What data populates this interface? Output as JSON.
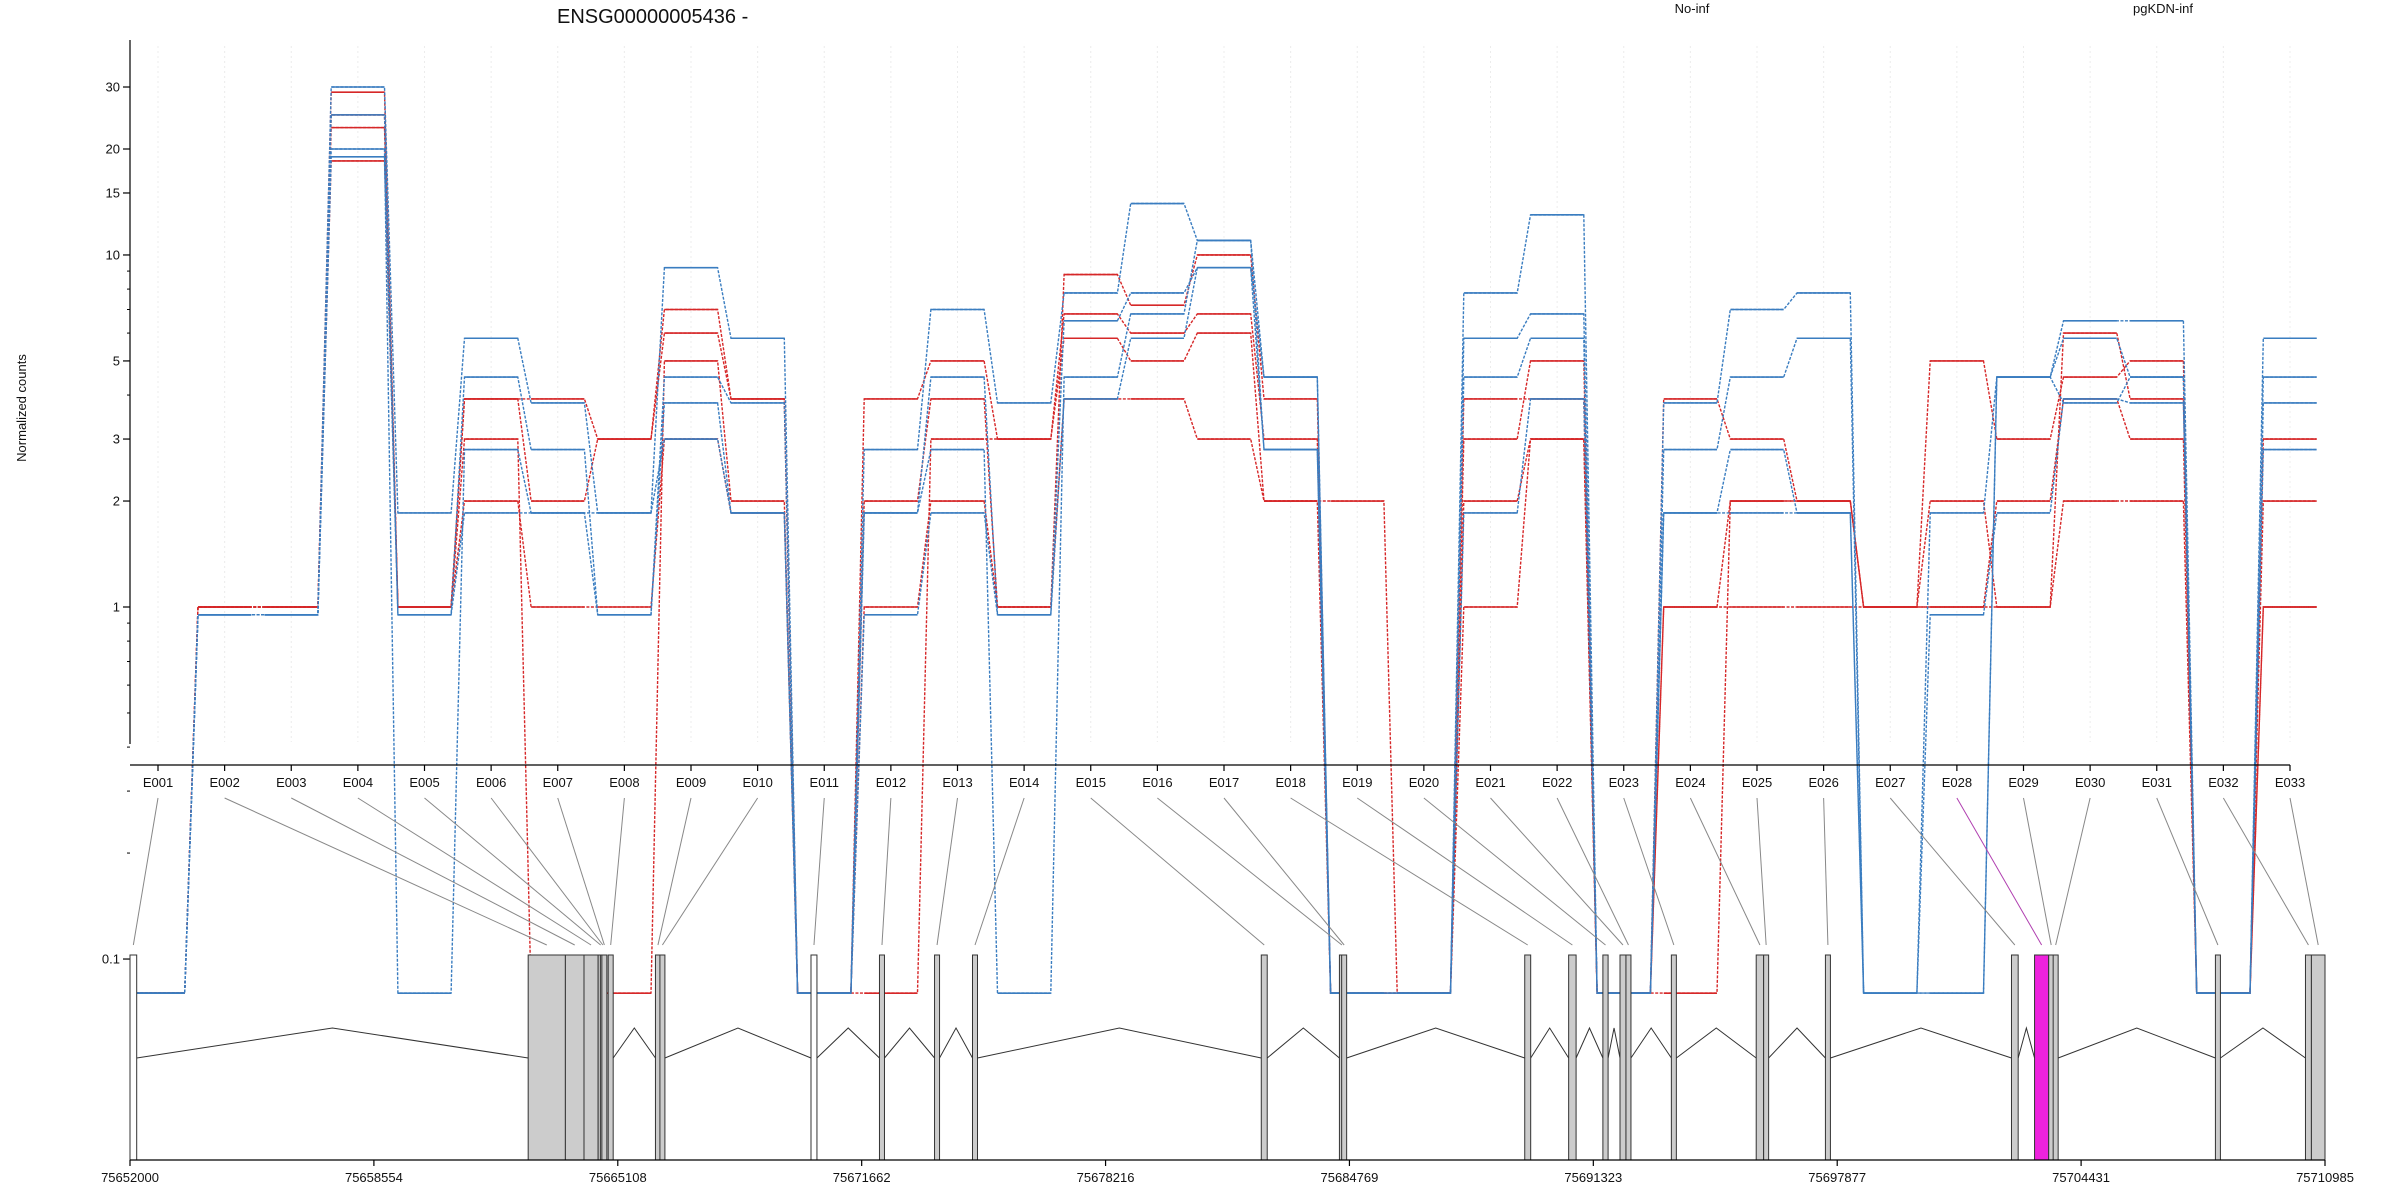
{
  "chart_data": {
    "type": "line",
    "title": "ENSG00000005436 -",
    "ylabel": "Normalized counts",
    "xlabel": "",
    "y_scale": "log",
    "ylim": [
      0.08,
      36
    ],
    "y_ticks": [
      0.1,
      1,
      2,
      3,
      5,
      10,
      15,
      20,
      30
    ],
    "y_tick_labels": [
      "0.1",
      "1",
      "2",
      "3",
      "5",
      "10",
      "15",
      "20",
      "30"
    ],
    "grid": true,
    "legend_position": "top-right",
    "legend": [
      {
        "label": "No-inf",
        "color": "#d62728"
      },
      {
        "label": "pgKDN-inf",
        "color": "#3a7dc0"
      }
    ],
    "categories": [
      "E001",
      "E002",
      "E003",
      "E004",
      "E005",
      "E006",
      "E007",
      "E008",
      "E009",
      "E010",
      "E011",
      "E012",
      "E013",
      "E014",
      "E015",
      "E016",
      "E017",
      "E018",
      "E019",
      "E020",
      "E021",
      "E022",
      "E023",
      "E024",
      "E025",
      "E026",
      "E027",
      "E028",
      "E029",
      "E030",
      "E031",
      "E032",
      "E033"
    ],
    "series": [
      {
        "group": "No-inf",
        "color": "#d62728",
        "values": [
          0.08,
          1,
          1,
          18.5,
          1,
          2,
          1,
          1,
          3,
          1.85,
          0.08,
          1,
          2,
          1,
          3.9,
          3.9,
          3,
          2,
          2,
          0.08,
          1,
          3,
          0.08,
          1,
          1,
          1,
          1,
          1,
          1,
          2,
          2,
          0.08,
          1
        ]
      },
      {
        "group": "No-inf",
        "color": "#d62728",
        "values": [
          0.08,
          1,
          1,
          23,
          1,
          3,
          0.08,
          0.08,
          5,
          2,
          0.08,
          0.08,
          3,
          3,
          5.8,
          5,
          6,
          2,
          0.08,
          0.08,
          2,
          3,
          0.08,
          0.08,
          2,
          2,
          1,
          1,
          2,
          3.9,
          3,
          0.08,
          2
        ]
      },
      {
        "group": "No-inf",
        "color": "#d62728",
        "values": [
          0.08,
          1,
          1,
          25,
          1,
          3.9,
          3.9,
          3,
          6,
          3.9,
          0.08,
          3.9,
          5,
          3,
          6.8,
          6,
          6.8,
          3,
          0.08,
          0.08,
          3,
          5,
          0.08,
          3.9,
          3,
          2,
          1,
          5,
          3,
          4.5,
          5,
          0.08,
          3
        ]
      },
      {
        "group": "No-inf",
        "color": "#d62728",
        "values": [
          0.08,
          1,
          1,
          29,
          1,
          3.9,
          2,
          3,
          7,
          3.9,
          0.08,
          2,
          3.9,
          1,
          8.8,
          7.2,
          10,
          3.9,
          0.08,
          0.08,
          3.9,
          3.9,
          0.08,
          1,
          2,
          2,
          1,
          2,
          1,
          6,
          3.9,
          0.08,
          1
        ]
      },
      {
        "group": "pgKDN-inf",
        "color": "#3a7dc0",
        "values": [
          0.08,
          0.95,
          0.95,
          19,
          0.95,
          1.85,
          1.85,
          1.85,
          3,
          1.85,
          0.08,
          0.95,
          1.85,
          0.95,
          3.9,
          5.8,
          9.2,
          2.8,
          0.08,
          0.08,
          1.85,
          3.9,
          0.08,
          1.85,
          1.85,
          1.85,
          0.08,
          0.95,
          1.85,
          3.9,
          3.8,
          0.08,
          2.8
        ]
      },
      {
        "group": "pgKDN-inf",
        "color": "#3a7dc0",
        "values": [
          0.08,
          0.95,
          0.95,
          20,
          0.08,
          2.8,
          1.85,
          0.95,
          3.8,
          1.85,
          0.08,
          1.85,
          2.8,
          0.08,
          4.5,
          6.8,
          11,
          2.8,
          0.08,
          0.08,
          4.5,
          5.8,
          0.08,
          1.85,
          2.8,
          1.85,
          0.08,
          0.08,
          4.5,
          3.8,
          4.5,
          0.08,
          3.8
        ]
      },
      {
        "group": "pgKDN-inf",
        "color": "#3a7dc0",
        "values": [
          0.08,
          0.95,
          0.95,
          25,
          0.95,
          4.5,
          2.8,
          0.95,
          4.5,
          3.8,
          0.08,
          1.85,
          4.5,
          0.95,
          6.5,
          7.8,
          9.2,
          4.5,
          0.08,
          0.08,
          5.8,
          6.8,
          0.08,
          2.8,
          4.5,
          5.8,
          0.08,
          0.08,
          4.5,
          5.8,
          4.5,
          0.08,
          4.5
        ]
      },
      {
        "group": "pgKDN-inf",
        "color": "#3a7dc0",
        "values": [
          0.08,
          0.95,
          0.95,
          30,
          1.85,
          5.8,
          3.8,
          1.85,
          9.2,
          5.8,
          0.08,
          2.8,
          7,
          3.8,
          7.8,
          14,
          11,
          4.5,
          0.08,
          0.08,
          7.8,
          13,
          0.08,
          3.8,
          7,
          7.8,
          0.08,
          1.85,
          4.5,
          6.5,
          6.5,
          0.08,
          5.8
        ]
      }
    ],
    "gene_model": {
      "coordinate_ticks": [
        75652000,
        75658554,
        75665108,
        75671662,
        75678216,
        75684769,
        75691323,
        75697877,
        75704431,
        75710985
      ],
      "coordinate_tick_labels": [
        "75652000",
        "75658554",
        "75665108",
        "75671662",
        "75678216",
        "75684769",
        "75691323",
        "75697877",
        "75704431",
        "75710985"
      ],
      "range": [
        75652000,
        75710985
      ],
      "highlighted_exon": "E028",
      "highlight_color": "#ee22dd",
      "exons": [
        {
          "id": "E001",
          "start": 75652000,
          "end": 75652180,
          "shaded": false
        },
        {
          "id": "E002",
          "start": 75662700,
          "end": 75663700,
          "shaded": true
        },
        {
          "id": "E003",
          "start": 75663700,
          "end": 75664200,
          "shaded": true
        },
        {
          "id": "E004",
          "start": 75664200,
          "end": 75664580,
          "shaded": true
        },
        {
          "id": "E005",
          "start": 75664580,
          "end": 75664640,
          "shaded": true
        },
        {
          "id": "E006",
          "start": 75664640,
          "end": 75664680,
          "shaded": true
        },
        {
          "id": "E007",
          "start": 75664680,
          "end": 75664800,
          "shaded": true
        },
        {
          "id": "E008",
          "start": 75664850,
          "end": 75664980,
          "shaded": true
        },
        {
          "id": "E009",
          "start": 75666120,
          "end": 75666240,
          "shaded": true
        },
        {
          "id": "E010",
          "start": 75666240,
          "end": 75666300,
          "shaded": true
        },
        {
          "id": "E011",
          "start": 75670300,
          "end": 75670460,
          "shaded": false
        },
        {
          "id": "E012",
          "start": 75672140,
          "end": 75672240,
          "shaded": true
        },
        {
          "id": "E013",
          "start": 75673620,
          "end": 75673720,
          "shaded": true
        },
        {
          "id": "E014",
          "start": 75674640,
          "end": 75674740,
          "shaded": true
        },
        {
          "id": "E015",
          "start": 75682400,
          "end": 75682560,
          "shaded": true
        },
        {
          "id": "E016",
          "start": 75684500,
          "end": 75684560,
          "shaded": true
        },
        {
          "id": "E017",
          "start": 75684560,
          "end": 75684620,
          "shaded": true
        },
        {
          "id": "E018",
          "start": 75689480,
          "end": 75689640,
          "shaded": true
        },
        {
          "id": "E019",
          "start": 75690660,
          "end": 75690860,
          "shaded": true
        },
        {
          "id": "E020",
          "start": 75691580,
          "end": 75691720,
          "shaded": true
        },
        {
          "id": "E021",
          "start": 75692040,
          "end": 75692200,
          "shaded": true
        },
        {
          "id": "E022",
          "start": 75692200,
          "end": 75692300,
          "shaded": true
        },
        {
          "id": "E023",
          "start": 75693420,
          "end": 75693540,
          "shaded": true
        },
        {
          "id": "E024",
          "start": 75695700,
          "end": 75695900,
          "shaded": true
        },
        {
          "id": "E025",
          "start": 75695900,
          "end": 75695960,
          "shaded": true
        },
        {
          "id": "E026",
          "start": 75697560,
          "end": 75697680,
          "shaded": true
        },
        {
          "id": "E027",
          "start": 75702560,
          "end": 75702740,
          "shaded": true
        },
        {
          "id": "E028",
          "start": 75703180,
          "end": 75703560,
          "shaded": true
        },
        {
          "id": "E029",
          "start": 75703560,
          "end": 75703680,
          "shaded": true
        },
        {
          "id": "E030",
          "start": 75703680,
          "end": 75703800,
          "shaded": true
        },
        {
          "id": "E031",
          "start": 75708040,
          "end": 75708160,
          "shaded": true
        },
        {
          "id": "E032",
          "start": 75710460,
          "end": 75710620,
          "shaded": true
        },
        {
          "id": "E033",
          "start": 75710620,
          "end": 75710985,
          "shaded": true
        }
      ]
    }
  }
}
